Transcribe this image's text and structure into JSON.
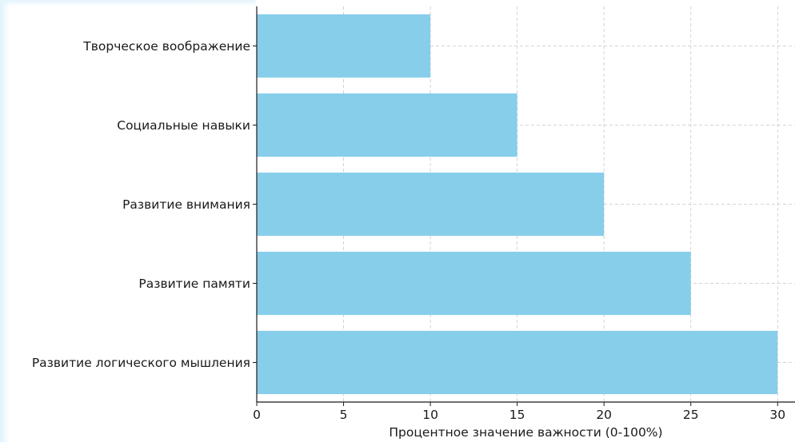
{
  "chart_data": {
    "type": "bar",
    "orientation": "horizontal",
    "categories": [
      "Творческое воображение",
      "Социальные навыки",
      "Развитие внимания",
      "Развитие памяти",
      "Развитие логического мышления"
    ],
    "values": [
      10,
      15,
      20,
      25,
      30
    ],
    "xlabel": "Процентное значение важности (0-100%)",
    "ylabel": "",
    "xlim": [
      0,
      31
    ],
    "xticks": [
      0,
      5,
      10,
      15,
      20,
      25,
      30
    ],
    "bar_color": "#87ceeb",
    "grid": true,
    "grid_style": "dashed"
  }
}
